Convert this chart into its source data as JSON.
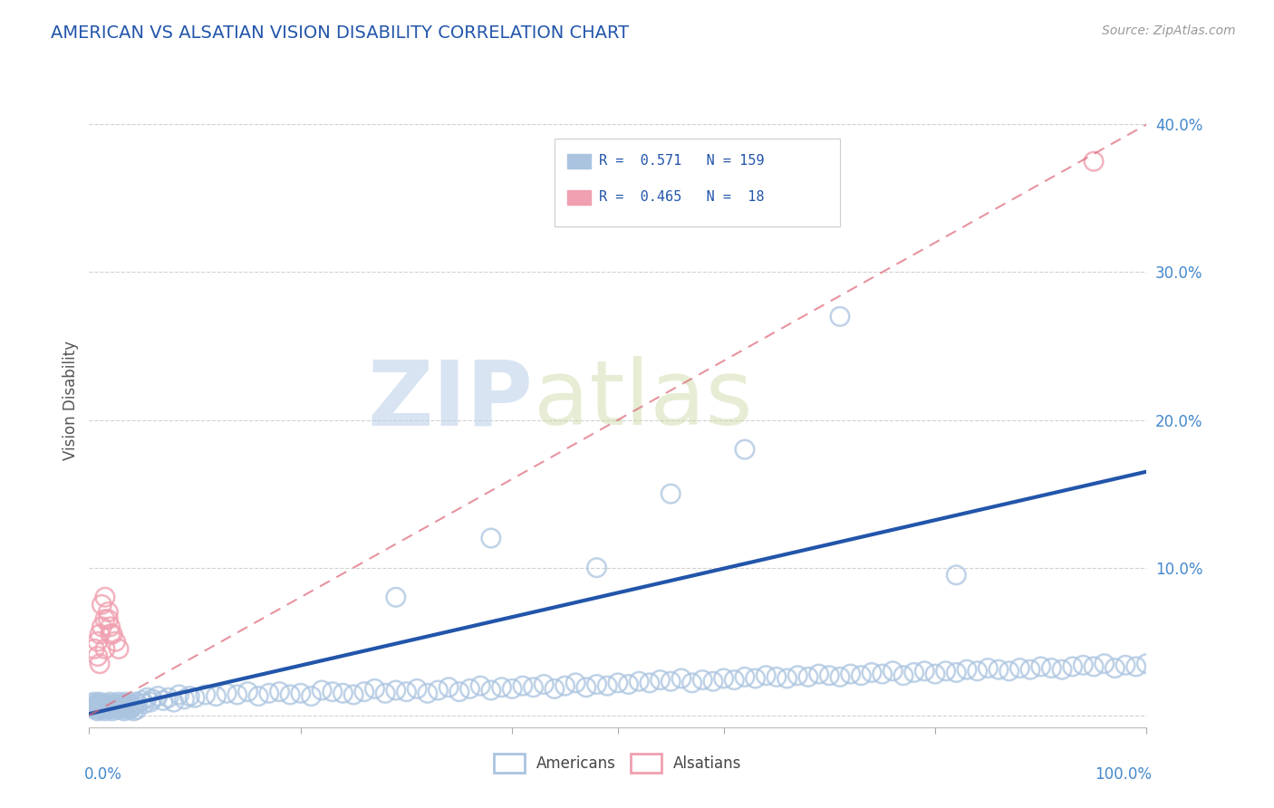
{
  "title": "AMERICAN VS ALSATIAN VISION DISABILITY CORRELATION CHART",
  "source": "Source: ZipAtlas.com",
  "ylabel": "Vision Disability",
  "yticks": [
    0.0,
    0.1,
    0.2,
    0.3,
    0.4
  ],
  "ytick_labels": [
    "",
    "10.0%",
    "20.0%",
    "30.0%",
    "40.0%"
  ],
  "xlim": [
    0.0,
    1.0
  ],
  "ylim": [
    -0.008,
    0.435
  ],
  "american_color": "#aac4e0",
  "alsatian_color": "#f0a0b0",
  "trend_american_color": "#2255aa",
  "trend_alsatian_color": "#dd6677",
  "watermark_zip": "ZIP",
  "watermark_atlas": "atlas",
  "background_color": "#ffffff",
  "grid_color": "#cccccc",
  "title_color": "#2255aa",
  "source_color": "#999999",
  "tick_label_color": "#4488cc",
  "ylabel_color": "#555555",
  "american_x": [
    0.002,
    0.003,
    0.004,
    0.005,
    0.005,
    0.006,
    0.007,
    0.008,
    0.008,
    0.009,
    0.01,
    0.01,
    0.011,
    0.012,
    0.013,
    0.014,
    0.015,
    0.015,
    0.016,
    0.017,
    0.018,
    0.019,
    0.02,
    0.02,
    0.021,
    0.022,
    0.023,
    0.024,
    0.025,
    0.026,
    0.027,
    0.028,
    0.029,
    0.03,
    0.031,
    0.032,
    0.033,
    0.034,
    0.035,
    0.036,
    0.037,
    0.038,
    0.039,
    0.04,
    0.041,
    0.042,
    0.043,
    0.044,
    0.045,
    0.046,
    0.05,
    0.052,
    0.055,
    0.058,
    0.06,
    0.065,
    0.07,
    0.075,
    0.08,
    0.085,
    0.09,
    0.095,
    0.1,
    0.11,
    0.12,
    0.13,
    0.14,
    0.15,
    0.16,
    0.17,
    0.18,
    0.19,
    0.2,
    0.21,
    0.22,
    0.23,
    0.24,
    0.25,
    0.26,
    0.27,
    0.28,
    0.29,
    0.3,
    0.31,
    0.32,
    0.33,
    0.34,
    0.35,
    0.36,
    0.37,
    0.38,
    0.39,
    0.4,
    0.41,
    0.42,
    0.43,
    0.44,
    0.45,
    0.46,
    0.47,
    0.48,
    0.49,
    0.5,
    0.51,
    0.52,
    0.53,
    0.54,
    0.55,
    0.56,
    0.57,
    0.58,
    0.59,
    0.6,
    0.61,
    0.62,
    0.63,
    0.64,
    0.65,
    0.66,
    0.67,
    0.68,
    0.69,
    0.7,
    0.71,
    0.72,
    0.73,
    0.74,
    0.75,
    0.76,
    0.77,
    0.78,
    0.79,
    0.8,
    0.81,
    0.82,
    0.83,
    0.84,
    0.85,
    0.86,
    0.87,
    0.88,
    0.89,
    0.9,
    0.91,
    0.92,
    0.93,
    0.94,
    0.95,
    0.96,
    0.97,
    0.98,
    0.99,
    1.0,
    0.48,
    0.62,
    0.71,
    0.82,
    0.55,
    0.38,
    0.29
  ],
  "american_y": [
    0.008,
    0.006,
    0.005,
    0.007,
    0.009,
    0.004,
    0.006,
    0.008,
    0.003,
    0.007,
    0.005,
    0.009,
    0.006,
    0.004,
    0.008,
    0.005,
    0.007,
    0.003,
    0.006,
    0.008,
    0.004,
    0.007,
    0.005,
    0.009,
    0.006,
    0.003,
    0.007,
    0.005,
    0.008,
    0.004,
    0.006,
    0.009,
    0.005,
    0.007,
    0.004,
    0.008,
    0.003,
    0.006,
    0.009,
    0.005,
    0.007,
    0.004,
    0.008,
    0.005,
    0.006,
    0.003,
    0.007,
    0.009,
    0.004,
    0.008,
    0.01,
    0.008,
    0.012,
    0.009,
    0.011,
    0.013,
    0.01,
    0.012,
    0.009,
    0.014,
    0.011,
    0.013,
    0.012,
    0.014,
    0.013,
    0.015,
    0.014,
    0.016,
    0.013,
    0.015,
    0.016,
    0.014,
    0.015,
    0.013,
    0.017,
    0.016,
    0.015,
    0.014,
    0.016,
    0.018,
    0.015,
    0.017,
    0.016,
    0.018,
    0.015,
    0.017,
    0.019,
    0.016,
    0.018,
    0.02,
    0.017,
    0.019,
    0.018,
    0.02,
    0.019,
    0.021,
    0.018,
    0.02,
    0.022,
    0.019,
    0.021,
    0.02,
    0.022,
    0.021,
    0.023,
    0.022,
    0.024,
    0.023,
    0.025,
    0.022,
    0.024,
    0.023,
    0.025,
    0.024,
    0.026,
    0.025,
    0.027,
    0.026,
    0.025,
    0.027,
    0.026,
    0.028,
    0.027,
    0.026,
    0.028,
    0.027,
    0.029,
    0.028,
    0.03,
    0.027,
    0.029,
    0.03,
    0.028,
    0.03,
    0.029,
    0.031,
    0.03,
    0.032,
    0.031,
    0.03,
    0.032,
    0.031,
    0.033,
    0.032,
    0.031,
    0.033,
    0.034,
    0.033,
    0.035,
    0.032,
    0.034,
    0.033,
    0.035,
    0.1,
    0.18,
    0.27,
    0.095,
    0.15,
    0.12,
    0.08
  ],
  "alsatian_x": [
    0.005,
    0.008,
    0.01,
    0.012,
    0.015,
    0.018,
    0.02,
    0.022,
    0.025,
    0.028,
    0.012,
    0.015,
    0.018,
    0.02,
    0.008,
    0.01,
    0.015,
    0.95
  ],
  "alsatian_y": [
    0.045,
    0.05,
    0.055,
    0.06,
    0.065,
    0.07,
    0.06,
    0.055,
    0.05,
    0.045,
    0.075,
    0.08,
    0.065,
    0.055,
    0.04,
    0.035,
    0.045,
    0.375
  ],
  "trend_am_x0": 0.0,
  "trend_am_y0": 0.001,
  "trend_am_x1": 1.0,
  "trend_am_y1": 0.165,
  "trend_als_x0": 0.0,
  "trend_als_y0": 0.0,
  "trend_als_x1": 1.0,
  "trend_als_y1": 0.4
}
